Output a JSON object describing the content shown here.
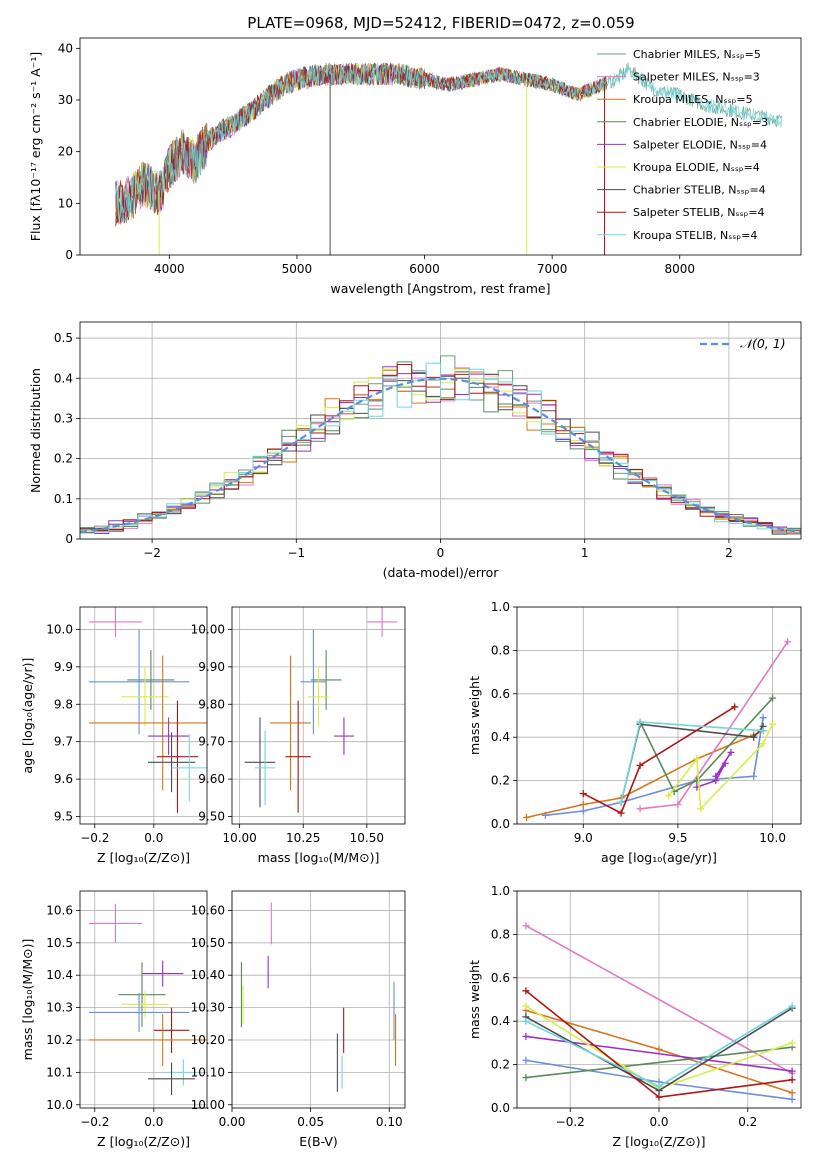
{
  "figure_title": "PLATE=0968, MJD=52412, FIBERID=0472, z=0.059",
  "colors": {
    "chabrier_miles": "#6e9a7f",
    "salpeter_miles": "#e377c2",
    "kroupa_miles": "#d6761b",
    "chabrier_elodie": "#5a8a5a",
    "salpeter_elodie": "#9b30c8",
    "kroupa_elodie": "#d8ed48",
    "chabrier_stelib": "#4d4d4d",
    "salpeter_stelib": "#b01515",
    "kroupa_stelib": "#6fd6e0",
    "blue": "#6b8fdc",
    "normal": "#5b8fd6"
  },
  "chart_data": [
    {
      "id": "spectrum",
      "type": "line",
      "xlabel": "wavelength [Angstrom, rest frame]",
      "ylabel": "Flux [fλ10⁻¹⁷ erg cm⁻² s⁻¹ A⁻¹]",
      "xlim": [
        3300,
        8950
      ],
      "ylim": [
        0,
        42
      ],
      "xticks": [
        4000,
        5000,
        6000,
        7000,
        8000
      ],
      "yticks": [
        0,
        10,
        20,
        30,
        40
      ],
      "grid": false,
      "legend_position": "top-right",
      "legend": [
        "Chabrier MILES, Nₛₛₚ=5",
        "Salpeter MILES, Nₛₛₚ=3",
        "Kroupa MILES, Nₛₛₚ=5",
        "Chabrier ELODIE, Nₛₛₚ=3",
        "Salpeter ELODIE, Nₛₛₚ=4",
        "Kroupa ELODIE, Nₛₛₚ=4",
        "Chabrier STELIB, Nₛₛₚ=4",
        "Salpeter STELIB, Nₛₛₚ=4",
        "Kroupa STELIB, Nₛₛₚ=4"
      ],
      "legend_colors": [
        "#6e9a7f",
        "#e377c2",
        "#d6761b",
        "#5a8a5a",
        "#9b30c8",
        "#d8ed48",
        "#4d4d4d",
        "#b01515",
        "#6fd6e0"
      ],
      "continuum_x": [
        3580,
        3700,
        3800,
        3900,
        3950,
        4000,
        4100,
        4200,
        4300,
        4400,
        4500,
        4600,
        4700,
        4800,
        4900,
        5000,
        5200,
        5400,
        5600,
        5800,
        6000,
        6200,
        6400,
        6600,
        6800,
        7000,
        7200,
        7400,
        7500,
        7600,
        7700,
        7800,
        8000,
        8200,
        8400,
        8600,
        8800
      ],
      "continuum_y": [
        10,
        11,
        14,
        12,
        13,
        17,
        20,
        18,
        22,
        24,
        25,
        27,
        29,
        31,
        33,
        34,
        35,
        35,
        35,
        35,
        34,
        33,
        34,
        35,
        34,
        33,
        31,
        33,
        34,
        36,
        34,
        32,
        31,
        29,
        28,
        27,
        26
      ],
      "dropouts": [
        {
          "x": 3920,
          "color": "#d8ed48"
        },
        {
          "x": 5260,
          "color": "#4d4d4d"
        },
        {
          "x": 6800,
          "color": "#d8ed48"
        },
        {
          "x": 7410,
          "color": "#b01515"
        }
      ]
    },
    {
      "id": "residuals",
      "type": "histogram",
      "xlabel": "(data-model)/error",
      "ylabel": "Normed distribution",
      "xlim": [
        -2.5,
        2.5
      ],
      "ylim": [
        0,
        0.54
      ],
      "xticks": [
        -2,
        -1,
        0,
        1,
        2
      ],
      "yticks": [
        0.0,
        0.1,
        0.2,
        0.3,
        0.4,
        0.5
      ],
      "grid": true,
      "bin_width": 0.1,
      "legend_position": "top-right",
      "legend": [
        "𝒩(0, 1)"
      ],
      "normal_curve": {
        "mean": 0,
        "sigma": 1
      }
    },
    {
      "id": "age_vs_z",
      "type": "scatter",
      "xlabel": "Z [log₁₀(Z/Z⊙)]",
      "ylabel": "age  [log₁₀(age/yr)]",
      "xlim": [
        -0.25,
        0.18
      ],
      "ylim": [
        9.48,
        10.06
      ],
      "xticks": [
        -0.2,
        0.0
      ],
      "yticks": [
        9.5,
        9.6,
        9.7,
        9.8,
        9.9,
        10.0
      ],
      "grid": true,
      "points": [
        {
          "color": "#e377c2",
          "x": -0.13,
          "xerr": 0.09,
          "y": 10.02,
          "yerr": 0.04
        },
        {
          "color": "#6b8fdc",
          "x": -0.05,
          "xerr": 0.17,
          "y": 9.86,
          "yerr": 0.14
        },
        {
          "color": "#5a8a5a",
          "x": -0.01,
          "xerr": 0.08,
          "y": 9.865,
          "yerr": 0.08
        },
        {
          "color": "#d8ed48",
          "x": -0.03,
          "xerr": 0.08,
          "y": 9.82,
          "yerr": 0.08
        },
        {
          "color": "#d6761b",
          "x": 0.03,
          "xerr": 0.25,
          "y": 9.75,
          "yerr": 0.18
        },
        {
          "color": "#9b30c8",
          "x": 0.05,
          "xerr": 0.07,
          "y": 9.715,
          "yerr": 0.05
        },
        {
          "color": "#b01515",
          "x": 0.08,
          "xerr": 0.07,
          "y": 9.66,
          "yerr": 0.15
        },
        {
          "color": "#4d4d4d",
          "x": 0.06,
          "xerr": 0.08,
          "y": 9.645,
          "yerr": 0.08
        },
        {
          "color": "#6fd6e0",
          "x": 0.12,
          "xerr": 0.06,
          "y": 9.63,
          "yerr": 0.09
        }
      ]
    },
    {
      "id": "age_vs_mass",
      "type": "scatter",
      "xlabel": "mass [log₁₀(M/M⊙)]",
      "ylabel": "",
      "xlim": [
        9.97,
        10.65
      ],
      "ylim": [
        9.48,
        10.06
      ],
      "xticks": [
        10.0,
        10.25,
        10.5
      ],
      "yticks": [
        9.5,
        9.6,
        9.7,
        9.8,
        9.9,
        10.0
      ],
      "grid": true,
      "points": [
        {
          "color": "#e377c2",
          "x": 10.56,
          "xerr": 0.06,
          "y": 10.02,
          "yerr": 0.04
        },
        {
          "color": "#6b8fdc",
          "x": 10.29,
          "xerr": 0.05,
          "y": 9.86,
          "yerr": 0.14
        },
        {
          "color": "#5a8a5a",
          "x": 10.34,
          "xerr": 0.06,
          "y": 9.865,
          "yerr": 0.08
        },
        {
          "color": "#d8ed48",
          "x": 10.31,
          "xerr": 0.04,
          "y": 9.82,
          "yerr": 0.08
        },
        {
          "color": "#d6761b",
          "x": 10.2,
          "xerr": 0.08,
          "y": 9.75,
          "yerr": 0.18
        },
        {
          "color": "#9b30c8",
          "x": 10.41,
          "xerr": 0.04,
          "y": 9.715,
          "yerr": 0.05
        },
        {
          "color": "#b01515",
          "x": 10.23,
          "xerr": 0.05,
          "y": 9.66,
          "yerr": 0.15
        },
        {
          "color": "#4d4d4d",
          "x": 10.08,
          "xerr": 0.06,
          "y": 9.645,
          "yerr": 0.12
        },
        {
          "color": "#6fd6e0",
          "x": 10.1,
          "xerr": 0.04,
          "y": 9.63,
          "yerr": 0.1
        }
      ]
    },
    {
      "id": "mass_weight_vs_age",
      "type": "line",
      "xlabel": "age  [log₁₀(age/yr)]",
      "ylabel": "mass weight",
      "xlim": [
        8.65,
        10.15
      ],
      "ylim": [
        0,
        1
      ],
      "xticks": [
        9.0,
        9.5,
        10.0
      ],
      "yticks": [
        0.0,
        0.2,
        0.4,
        0.6,
        0.8,
        1.0
      ],
      "grid": true,
      "series": [
        {
          "color": "#6b8fdc",
          "x": [
            8.8,
            9.0,
            9.2,
            9.6,
            9.9,
            9.95
          ],
          "y": [
            0.04,
            0.06,
            0.1,
            0.2,
            0.22,
            0.49
          ]
        },
        {
          "color": "#d6761b",
          "x": [
            8.7,
            9.0,
            9.2,
            9.6,
            9.9,
            9.95
          ],
          "y": [
            0.03,
            0.09,
            0.12,
            0.3,
            0.41,
            0.43
          ]
        },
        {
          "color": "#e377c2",
          "x": [
            9.3,
            9.5,
            10.08
          ],
          "y": [
            0.07,
            0.09,
            0.84
          ]
        },
        {
          "color": "#5a8a5a",
          "x": [
            9.3,
            9.48,
            9.6,
            10.0
          ],
          "y": [
            0.47,
            0.15,
            0.2,
            0.58
          ]
        },
        {
          "color": "#9b30c8",
          "x": [
            9.6,
            9.7,
            9.75,
            9.7,
            9.78
          ],
          "y": [
            0.17,
            0.2,
            0.28,
            0.22,
            0.33
          ]
        },
        {
          "color": "#d8ed48",
          "x": [
            9.45,
            9.6,
            9.62,
            9.95,
            10.0
          ],
          "y": [
            0.13,
            0.3,
            0.07,
            0.37,
            0.46
          ]
        },
        {
          "color": "#4d4d4d",
          "x": [
            9.2,
            9.3,
            9.9,
            9.95
          ],
          "y": [
            0.1,
            0.46,
            0.4,
            0.45
          ]
        },
        {
          "color": "#b01515",
          "x": [
            9.0,
            9.2,
            9.3,
            9.8
          ],
          "y": [
            0.14,
            0.05,
            0.27,
            0.54
          ]
        },
        {
          "color": "#6fd6e0",
          "x": [
            9.2,
            9.3,
            9.95
          ],
          "y": [
            0.1,
            0.47,
            0.43
          ]
        }
      ]
    },
    {
      "id": "mass_vs_z",
      "type": "scatter",
      "xlabel": "Z [log₁₀(Z/Z⊙)]",
      "ylabel": "mass [log₁₀(M/M⊙)]",
      "xlim": [
        -0.25,
        0.18
      ],
      "ylim": [
        9.99,
        10.66
      ],
      "xticks": [
        -0.2,
        0.0
      ],
      "yticks": [
        10.0,
        10.1,
        10.2,
        10.3,
        10.4,
        10.5,
        10.6
      ],
      "grid": true,
      "points": [
        {
          "color": "#e377c2",
          "x": -0.13,
          "xerr": 0.09,
          "y": 10.56,
          "yerr": 0.06
        },
        {
          "color": "#9b30c8",
          "x": 0.03,
          "xerr": 0.07,
          "y": 10.405,
          "yerr": 0.04
        },
        {
          "color": "#5a8a5a",
          "x": -0.04,
          "xerr": 0.08,
          "y": 10.34,
          "yerr": 0.1
        },
        {
          "color": "#d8ed48",
          "x": -0.03,
          "xerr": 0.08,
          "y": 10.31,
          "yerr": 0.04
        },
        {
          "color": "#6b8fdc",
          "x": -0.05,
          "xerr": 0.17,
          "y": 10.285,
          "yerr": 0.06
        },
        {
          "color": "#b01515",
          "x": 0.06,
          "xerr": 0.06,
          "y": 10.23,
          "yerr": 0.07
        },
        {
          "color": "#d6761b",
          "x": 0.03,
          "xerr": 0.25,
          "y": 10.2,
          "yerr": 0.08
        },
        {
          "color": "#6fd6e0",
          "x": 0.1,
          "xerr": 0.06,
          "y": 10.1,
          "yerr": 0.04
        },
        {
          "color": "#4d4d4d",
          "x": 0.06,
          "xerr": 0.08,
          "y": 10.08,
          "yerr": 0.05
        }
      ]
    },
    {
      "id": "mass_vs_ebv",
      "type": "scatter",
      "xlabel": "E(B-V)",
      "ylabel": "",
      "xlim": [
        0.0,
        0.11
      ],
      "ylim": [
        9.99,
        10.66
      ],
      "xticks": [
        0.0,
        0.05,
        0.1
      ],
      "yticks": [
        10.0,
        10.1,
        10.2,
        10.3,
        10.4,
        10.5,
        10.6
      ],
      "grid": true,
      "points": [
        {
          "color": "#e377c2",
          "x": 0.025,
          "xerr": 0.0,
          "y": 10.56,
          "yerr": 0.065
        },
        {
          "color": "#9b30c8",
          "x": 0.023,
          "xerr": 0.0,
          "y": 10.41,
          "yerr": 0.05
        },
        {
          "color": "#5a8a5a",
          "x": 0.006,
          "xerr": 0.0,
          "y": 10.34,
          "yerr": 0.1
        },
        {
          "color": "#d8ed48",
          "x": 0.007,
          "xerr": 0.0,
          "y": 10.31,
          "yerr": 0.06
        },
        {
          "color": "#6b8fdc",
          "x": 0.103,
          "xerr": 0.0,
          "y": 10.29,
          "yerr": 0.09
        },
        {
          "color": "#b01515",
          "x": 0.071,
          "xerr": 0.0,
          "y": 10.23,
          "yerr": 0.07
        },
        {
          "color": "#d6761b",
          "x": 0.104,
          "xerr": 0.0,
          "y": 10.2,
          "yerr": 0.08
        },
        {
          "color": "#6fd6e0",
          "x": 0.07,
          "xerr": 0.0,
          "y": 10.1,
          "yerr": 0.05
        },
        {
          "color": "#4d4d4d",
          "x": 0.067,
          "xerr": 0.0,
          "y": 10.13,
          "yerr": 0.09
        }
      ]
    },
    {
      "id": "mass_weight_vs_z",
      "type": "line",
      "xlabel": "Z [log₁₀(Z/Z⊙)]",
      "ylabel": "mass weight",
      "xlim": [
        -0.32,
        0.32
      ],
      "ylim": [
        0,
        1
      ],
      "xticks": [
        -0.2,
        0.0,
        0.2
      ],
      "yticks": [
        0.0,
        0.2,
        0.4,
        0.6,
        0.8,
        1.0
      ],
      "grid": true,
      "series": [
        {
          "color": "#e377c2",
          "x": [
            -0.3,
            0.3
          ],
          "y": [
            0.84,
            0.16
          ]
        },
        {
          "color": "#6b8fdc",
          "x": [
            -0.3,
            0.0,
            0.3
          ],
          "y": [
            0.22,
            0.12,
            0.04
          ]
        },
        {
          "color": "#d6761b",
          "x": [
            -0.3,
            0.0,
            0.3
          ],
          "y": [
            0.45,
            0.27,
            0.07
          ]
        },
        {
          "color": "#5a8a5a",
          "x": [
            -0.3,
            0.3
          ],
          "y": [
            0.14,
            0.28
          ]
        },
        {
          "color": "#9b30c8",
          "x": [
            -0.3,
            0.3
          ],
          "y": [
            0.33,
            0.17
          ]
        },
        {
          "color": "#d8ed48",
          "x": [
            -0.3,
            0.0,
            0.3
          ],
          "y": [
            0.47,
            0.09,
            0.3
          ]
        },
        {
          "color": "#4d4d4d",
          "x": [
            -0.3,
            0.0,
            0.3
          ],
          "y": [
            0.42,
            0.08,
            0.46
          ]
        },
        {
          "color": "#b01515",
          "x": [
            -0.3,
            0.0,
            0.3
          ],
          "y": [
            0.54,
            0.05,
            0.13
          ]
        },
        {
          "color": "#6fd6e0",
          "x": [
            -0.3,
            0.0,
            0.3
          ],
          "y": [
            0.4,
            0.1,
            0.47
          ]
        }
      ]
    }
  ]
}
